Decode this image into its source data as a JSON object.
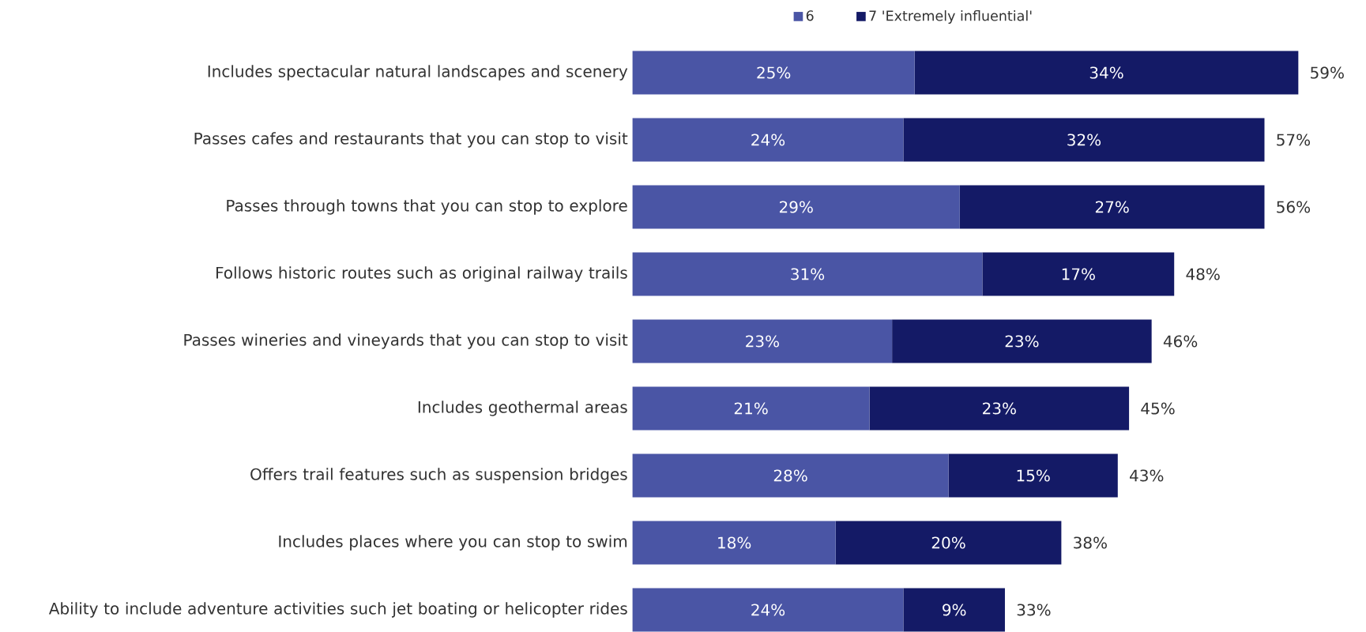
{
  "chart_data": {
    "type": "bar",
    "orientation": "horizontal",
    "stacked": true,
    "legend": "top",
    "tick_labels": "y",
    "categories": [
      "Includes spectacular natural landscapes and scenery",
      "Passes cafes and restaurants that you can stop to visit",
      "Passes through towns that you can stop to explore",
      "Follows historic routes such as original railway trails",
      "Passes wineries and vineyards that you can stop to visit",
      "Includes geothermal areas",
      "Offers trail features such as suspension bridges",
      "Includes places where you can stop to swim",
      "Ability to include adventure activities such jet boating or helicopter rides"
    ],
    "series": [
      {
        "name": "6",
        "color": "#4a55a5",
        "values": [
          25,
          24,
          29,
          31,
          23,
          21,
          28,
          18,
          24
        ],
        "value_labels": [
          "25%",
          "24%",
          "29%",
          "31%",
          "23%",
          "21%",
          "28%",
          "18%",
          "24%"
        ]
      },
      {
        "name": "7 'Extremely influential'",
        "color": "#141a66",
        "values": [
          34,
          32,
          27,
          17,
          23,
          23,
          15,
          20,
          9
        ],
        "value_labels": [
          "34%",
          "32%",
          "27%",
          "17%",
          "23%",
          "23%",
          "15%",
          "20%",
          "9%"
        ]
      }
    ],
    "totals": [
      "59%",
      "57%",
      "56%",
      "48%",
      "46%",
      "45%",
      "43%",
      "38%",
      "33%"
    ]
  }
}
